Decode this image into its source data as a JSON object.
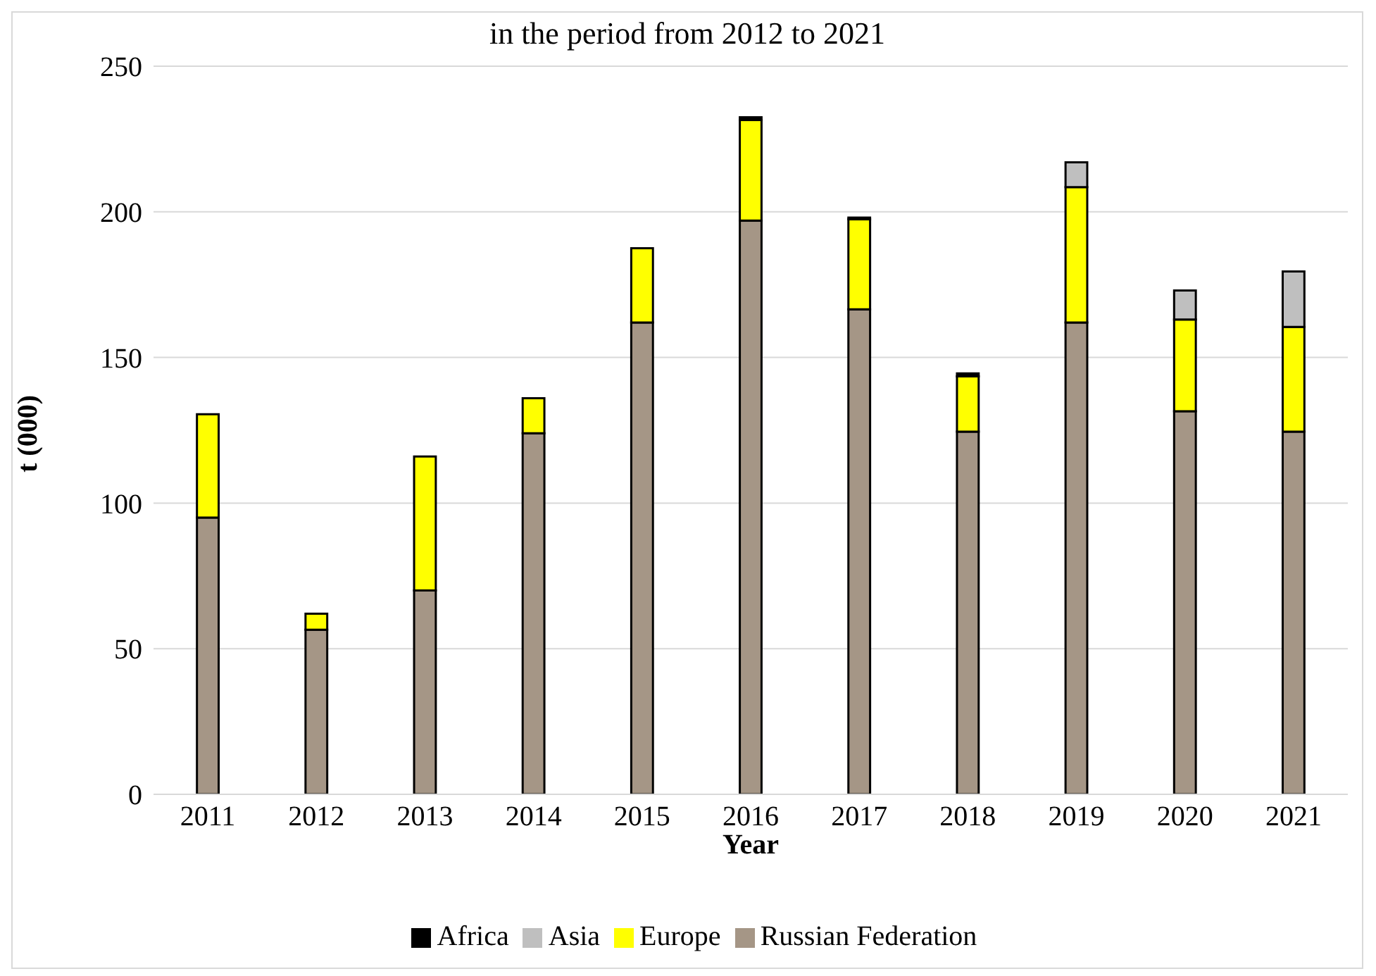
{
  "chart_data": {
    "type": "bar",
    "title": "in the period from 2012 to 2021",
    "xlabel": "Year",
    "ylabel": "t (000)",
    "categories": [
      "2011",
      "2012",
      "2013",
      "2014",
      "2015",
      "2016",
      "2017",
      "2018",
      "2019",
      "2020",
      "2021"
    ],
    "stacked": true,
    "series": [
      {
        "name": "Russian Federation",
        "color": "#a59686",
        "values": [
          95,
          56.5,
          70,
          124,
          162,
          197,
          166.5,
          124.5,
          162,
          131.5,
          124.5
        ]
      },
      {
        "name": "Europe",
        "color": "#ffff00",
        "values": [
          35.5,
          5.5,
          46,
          12,
          25.5,
          34.5,
          31,
          19,
          46.5,
          31.5,
          36
        ]
      },
      {
        "name": "Asia",
        "color": "#bfbfbf",
        "values": [
          null,
          null,
          null,
          null,
          null,
          null,
          null,
          null,
          8.5,
          10,
          19
        ]
      },
      {
        "name": "Africa",
        "color": "#000000",
        "values": [
          null,
          null,
          null,
          null,
          null,
          1,
          0.5,
          1,
          null,
          null,
          null
        ]
      }
    ],
    "ylim": [
      0,
      250
    ],
    "yticks": [
      0,
      50,
      100,
      150,
      200,
      250
    ],
    "grid": "y",
    "legend": "bottom"
  }
}
